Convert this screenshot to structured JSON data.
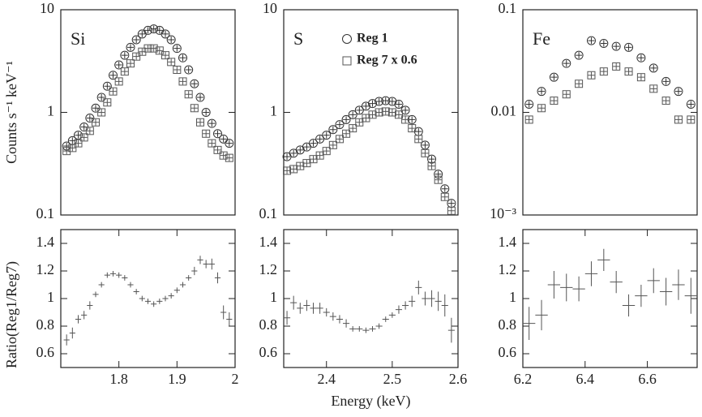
{
  "chart_data": [
    {
      "type": "scatter",
      "log_y": true,
      "annotation": "Si",
      "ylabel": "Counts s⁻¹ keV⁻¹",
      "xlim": [
        1.7,
        2.0
      ],
      "ylim": [
        0.1,
        10
      ],
      "yticks": [
        0.1,
        1,
        10
      ],
      "x": [
        1.71,
        1.72,
        1.73,
        1.74,
        1.75,
        1.76,
        1.77,
        1.78,
        1.79,
        1.8,
        1.81,
        1.82,
        1.83,
        1.84,
        1.85,
        1.86,
        1.87,
        1.88,
        1.89,
        1.9,
        1.91,
        1.92,
        1.93,
        1.94,
        1.95,
        1.96,
        1.97,
        1.98,
        1.99
      ],
      "series": [
        {
          "marker": "circle",
          "color": "#333",
          "values": [
            0.47,
            0.53,
            0.6,
            0.72,
            0.88,
            1.1,
            1.4,
            1.8,
            2.3,
            2.9,
            3.6,
            4.3,
            5.1,
            5.8,
            6.3,
            6.5,
            6.3,
            5.8,
            5.1,
            4.2,
            3.4,
            2.6,
            1.9,
            1.4,
            1.0,
            0.78,
            0.62,
            0.55,
            0.5
          ]
        },
        {
          "marker": "square",
          "color": "#555",
          "values": [
            0.42,
            0.45,
            0.5,
            0.57,
            0.66,
            0.8,
            1.0,
            1.25,
            1.6,
            2.0,
            2.5,
            3.0,
            3.5,
            3.9,
            4.2,
            4.2,
            4.0,
            3.6,
            3.1,
            2.6,
            2.0,
            1.5,
            1.1,
            0.8,
            0.62,
            0.5,
            0.43,
            0.38,
            0.36
          ]
        }
      ]
    },
    {
      "type": "scatter",
      "log_y": true,
      "annotation": "S",
      "legend": true,
      "xlim": [
        2.335,
        2.6
      ],
      "ylim": [
        0.1,
        10
      ],
      "yticks": [
        0.1,
        1,
        10
      ],
      "x": [
        2.34,
        2.35,
        2.36,
        2.37,
        2.38,
        2.39,
        2.4,
        2.41,
        2.42,
        2.43,
        2.44,
        2.45,
        2.46,
        2.47,
        2.48,
        2.49,
        2.5,
        2.51,
        2.52,
        2.53,
        2.54,
        2.55,
        2.56,
        2.57,
        2.58,
        2.59
      ],
      "series": [
        {
          "name": "Reg 1",
          "marker": "circle",
          "color": "#333",
          "values": [
            0.37,
            0.4,
            0.43,
            0.46,
            0.5,
            0.55,
            0.6,
            0.68,
            0.76,
            0.85,
            0.95,
            1.05,
            1.15,
            1.22,
            1.28,
            1.3,
            1.28,
            1.2,
            1.05,
            0.85,
            0.65,
            0.48,
            0.35,
            0.25,
            0.18,
            0.13
          ]
        },
        {
          "name": "Reg 7 x 0.6",
          "marker": "square",
          "color": "#555",
          "values": [
            0.27,
            0.28,
            0.3,
            0.32,
            0.35,
            0.38,
            0.42,
            0.48,
            0.55,
            0.62,
            0.7,
            0.8,
            0.88,
            0.95,
            1.0,
            1.02,
            1.0,
            0.95,
            0.85,
            0.7,
            0.55,
            0.4,
            0.3,
            0.22,
            0.15,
            0.11
          ]
        }
      ]
    },
    {
      "type": "scatter",
      "log_y": true,
      "annotation": "Fe",
      "xlim": [
        6.2,
        6.76
      ],
      "ylim": [
        0.001,
        0.1
      ],
      "yticks": [
        {
          "value": 0.001,
          "label": "10⁻³"
        },
        0.01,
        0.1
      ],
      "x": [
        6.22,
        6.26,
        6.3,
        6.34,
        6.38,
        6.42,
        6.46,
        6.5,
        6.54,
        6.58,
        6.62,
        6.66,
        6.7,
        6.74
      ],
      "series": [
        {
          "marker": "circle",
          "color": "#333",
          "values": [
            0.012,
            0.016,
            0.022,
            0.03,
            0.036,
            0.05,
            0.047,
            0.044,
            0.043,
            0.034,
            0.027,
            0.02,
            0.016,
            0.012
          ]
        },
        {
          "marker": "square",
          "color": "#555",
          "values": [
            0.0085,
            0.011,
            0.013,
            0.015,
            0.019,
            0.023,
            0.025,
            0.028,
            0.025,
            0.022,
            0.017,
            0.013,
            0.0085,
            0.0085
          ]
        }
      ]
    },
    {
      "type": "errorbar",
      "ylabel": "Ratio(Reg1/Reg7)",
      "color": "#555",
      "xlim": [
        1.7,
        2.0
      ],
      "ylim": [
        0.5,
        1.5
      ],
      "yticks": [
        0.6,
        0.8,
        1,
        1.2,
        1.4
      ],
      "xticks": [
        1.8,
        1.9,
        2
      ],
      "x": [
        1.71,
        1.72,
        1.73,
        1.74,
        1.75,
        1.76,
        1.77,
        1.78,
        1.79,
        1.8,
        1.81,
        1.82,
        1.83,
        1.84,
        1.85,
        1.86,
        1.87,
        1.88,
        1.89,
        1.9,
        1.91,
        1.92,
        1.93,
        1.94,
        1.95,
        1.96,
        1.97,
        1.98,
        1.99
      ],
      "values": [
        0.7,
        0.75,
        0.85,
        0.88,
        0.95,
        1.03,
        1.1,
        1.17,
        1.18,
        1.17,
        1.15,
        1.1,
        1.05,
        1.0,
        0.98,
        0.96,
        0.98,
        1.0,
        1.02,
        1.06,
        1.1,
        1.15,
        1.2,
        1.28,
        1.25,
        1.25,
        1.15,
        0.9,
        0.85
      ],
      "errors": [
        0.04,
        0.04,
        0.03,
        0.03,
        0.03,
        0.02,
        0.02,
        0.02,
        0.02,
        0.02,
        0.02,
        0.02,
        0.02,
        0.02,
        0.02,
        0.02,
        0.02,
        0.02,
        0.02,
        0.02,
        0.02,
        0.02,
        0.03,
        0.03,
        0.03,
        0.04,
        0.04,
        0.05,
        0.05
      ]
    },
    {
      "type": "errorbar",
      "xlabel": "Energy (keV)",
      "color": "#555",
      "xlim": [
        2.335,
        2.6
      ],
      "ylim": [
        0.5,
        1.5
      ],
      "yticks": [
        0.6,
        0.8,
        1,
        1.2,
        1.4
      ],
      "xticks": [
        2.4,
        2.5,
        2.6
      ],
      "x": [
        2.34,
        2.35,
        2.36,
        2.37,
        2.38,
        2.39,
        2.4,
        2.41,
        2.42,
        2.43,
        2.44,
        2.45,
        2.46,
        2.47,
        2.48,
        2.49,
        2.5,
        2.51,
        2.52,
        2.53,
        2.54,
        2.55,
        2.56,
        2.57,
        2.58,
        2.59
      ],
      "values": [
        0.86,
        0.97,
        0.93,
        0.95,
        0.93,
        0.93,
        0.9,
        0.87,
        0.85,
        0.82,
        0.78,
        0.78,
        0.77,
        0.78,
        0.8,
        0.85,
        0.88,
        0.92,
        0.95,
        0.98,
        1.08,
        1.0,
        1.0,
        0.98,
        0.95,
        0.77
      ],
      "errors": [
        0.05,
        0.05,
        0.04,
        0.04,
        0.04,
        0.04,
        0.03,
        0.03,
        0.03,
        0.03,
        0.02,
        0.02,
        0.02,
        0.02,
        0.02,
        0.02,
        0.02,
        0.03,
        0.03,
        0.04,
        0.05,
        0.05,
        0.06,
        0.07,
        0.08,
        0.09
      ]
    },
    {
      "type": "errorbar",
      "color": "#555",
      "xlim": [
        6.2,
        6.76
      ],
      "ylim": [
        0.5,
        1.5
      ],
      "yticks": [
        0.6,
        0.8,
        1,
        1.2,
        1.4
      ],
      "xticks": [
        6.2,
        6.4,
        6.6
      ],
      "x": [
        6.22,
        6.26,
        6.3,
        6.34,
        6.38,
        6.42,
        6.46,
        6.5,
        6.54,
        6.58,
        6.62,
        6.66,
        6.7,
        6.74
      ],
      "values": [
        0.82,
        0.88,
        1.1,
        1.08,
        1.07,
        1.18,
        1.28,
        1.12,
        0.95,
        1.02,
        1.13,
        1.05,
        1.1,
        1.02
      ],
      "errors": [
        0.12,
        0.11,
        0.1,
        0.1,
        0.09,
        0.09,
        0.08,
        0.08,
        0.08,
        0.08,
        0.09,
        0.1,
        0.11,
        0.13
      ]
    }
  ]
}
